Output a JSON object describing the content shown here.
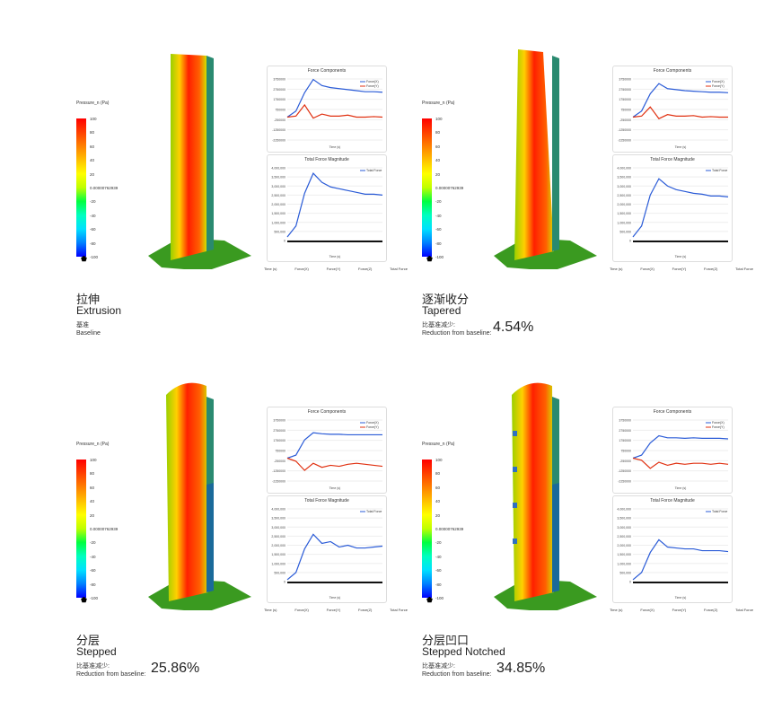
{
  "legend": {
    "title": "Pressure_n (Pa)",
    "ticks": [
      "100",
      "80",
      "60",
      "40",
      "20",
      "0.00000762939",
      "-20",
      "-40",
      "-60",
      "-80",
      "-100"
    ],
    "colors": [
      "#ff0000",
      "#ff4000",
      "#ff8000",
      "#ffc000",
      "#ffff00",
      "#c0ff00",
      "#00ff40",
      "#00ffc0",
      "#00e0ff",
      "#0080ff",
      "#0000ff"
    ]
  },
  "footer": [
    "Time (s)",
    "Force(X)",
    "Force(Y)",
    "Force(Z)",
    "Total Force"
  ],
  "chart_titles": {
    "components": "Force Components",
    "total": "Total Force Magnitude",
    "xlabel": "Time (s)"
  },
  "panels": [
    {
      "cn": "拉伸",
      "en": "Extrusion",
      "sub_cn": "基准",
      "sub_en": "Baseline",
      "pct": "",
      "shape": "extrusion"
    },
    {
      "cn": "逐渐收分",
      "en": "Tapered",
      "sub_cn": "比基准减少:",
      "sub_en": "Reduction from baseline:",
      "pct": "4.54%",
      "shape": "tapered"
    },
    {
      "cn": "分层",
      "en": "Stepped",
      "sub_cn": "比基准减少:",
      "sub_en": "Reduction from baseline:",
      "pct": "25.86%",
      "shape": "stepped"
    },
    {
      "cn": "分层凹口",
      "en": "Stepped Notched",
      "sub_cn": "比基准减少:",
      "sub_en": "Reduction from baseline:",
      "pct": "34.85%",
      "shape": "notched"
    }
  ],
  "chart_data": [
    {
      "type": "line",
      "title": "Force Components",
      "xlabel": "Time (s)",
      "yticks": [
        "3750000",
        "2750000",
        "1750000",
        "750000",
        "-250000",
        "-1250000",
        "-2250000"
      ],
      "ylim": [
        -2250000,
        3750000
      ],
      "series": [
        {
          "name": "Force(X)",
          "color": "#2a5bd7",
          "values": [
            0,
            600000,
            2400000,
            3700000,
            3100000,
            2900000,
            2800000,
            2700000,
            2600000,
            2500000,
            2500000,
            2450000
          ]
        },
        {
          "name": "Force(Y)",
          "color": "#e03010",
          "values": [
            0,
            100000,
            1200000,
            -100000,
            300000,
            100000,
            100000,
            200000,
            0,
            0,
            50000,
            0
          ]
        }
      ]
    },
    {
      "type": "line",
      "title": "Total Force Magnitude",
      "yticks": [
        "4,000,000",
        "3,500,000",
        "3,000,000",
        "2,500,000",
        "2,000,000",
        "1,500,000",
        "1,000,000",
        "500,000",
        "0"
      ],
      "ylim": [
        0,
        4000000
      ],
      "series": [
        {
          "name": "Total Force",
          "color": "#2a5bd7",
          "values": [
            200000,
            800000,
            2600000,
            3700000,
            3200000,
            2950000,
            2850000,
            2750000,
            2650000,
            2550000,
            2550000,
            2500000
          ]
        }
      ]
    },
    {
      "type": "line",
      "title": "Force Components",
      "yticks": [
        "3750000",
        "2750000",
        "1750000",
        "750000",
        "-250000",
        "-1250000",
        "-2250000"
      ],
      "ylim": [
        -2250000,
        3750000
      ],
      "series": [
        {
          "name": "Force(X)",
          "color": "#2a5bd7",
          "values": [
            0,
            600000,
            2300000,
            3300000,
            2800000,
            2700000,
            2600000,
            2550000,
            2500000,
            2450000,
            2450000,
            2400000
          ]
        },
        {
          "name": "Force(Y)",
          "color": "#e03010",
          "values": [
            0,
            100000,
            1000000,
            -150000,
            250000,
            100000,
            100000,
            150000,
            0,
            50000,
            0,
            0
          ]
        }
      ]
    },
    {
      "type": "line",
      "title": "Total Force Magnitude",
      "yticks": [
        "4,000,000",
        "3,500,000",
        "3,000,000",
        "2,500,000",
        "2,000,000",
        "1,500,000",
        "1,000,000",
        "500,000",
        "0"
      ],
      "ylim": [
        0,
        4000000
      ],
      "series": [
        {
          "name": "Total Force",
          "color": "#2a5bd7",
          "values": [
            200000,
            800000,
            2500000,
            3400000,
            3000000,
            2800000,
            2700000,
            2600000,
            2550000,
            2450000,
            2450000,
            2400000
          ]
        }
      ]
    },
    {
      "type": "line",
      "title": "Force Components",
      "yticks": [
        "3750000",
        "2750000",
        "1750000",
        "750000",
        "-250000",
        "-1250000",
        "-2250000"
      ],
      "ylim": [
        -2250000,
        3750000
      ],
      "series": [
        {
          "name": "Force(X)",
          "color": "#2a5bd7",
          "values": [
            0,
            300000,
            1800000,
            2500000,
            2400000,
            2350000,
            2350000,
            2300000,
            2300000,
            2300000,
            2300000,
            2300000
          ]
        },
        {
          "name": "Force(Y)",
          "color": "#e03010",
          "values": [
            0,
            -300000,
            -1200000,
            -500000,
            -900000,
            -700000,
            -800000,
            -600000,
            -500000,
            -600000,
            -700000,
            -800000
          ]
        }
      ]
    },
    {
      "type": "line",
      "title": "Total Force Magnitude",
      "yticks": [
        "4,000,000",
        "3,500,000",
        "3,000,000",
        "2,500,000",
        "2,000,000",
        "1,500,000",
        "1,000,000",
        "500,000",
        "0"
      ],
      "ylim": [
        0,
        4000000
      ],
      "series": [
        {
          "name": "Total Force",
          "color": "#2a5bd7",
          "values": [
            100000,
            500000,
            1800000,
            2600000,
            2100000,
            2200000,
            1900000,
            2000000,
            1850000,
            1850000,
            1900000,
            1950000
          ]
        }
      ]
    },
    {
      "type": "line",
      "title": "Force Components",
      "yticks": [
        "3750000",
        "2750000",
        "1750000",
        "750000",
        "-250000",
        "-1250000",
        "-2250000"
      ],
      "ylim": [
        -2250000,
        3750000
      ],
      "series": [
        {
          "name": "Force(X)",
          "color": "#2a5bd7",
          "values": [
            0,
            300000,
            1500000,
            2200000,
            2000000,
            2000000,
            1950000,
            2000000,
            1950000,
            1950000,
            1950000,
            1900000
          ]
        },
        {
          "name": "Force(Y)",
          "color": "#e03010",
          "values": [
            0,
            -200000,
            -1000000,
            -400000,
            -700000,
            -500000,
            -600000,
            -500000,
            -500000,
            -600000,
            -500000,
            -600000
          ]
        }
      ]
    },
    {
      "type": "line",
      "title": "Total Force Magnitude",
      "yticks": [
        "4,000,000",
        "3,500,000",
        "3,000,000",
        "2,500,000",
        "2,000,000",
        "1,500,000",
        "1,000,000",
        "500,000",
        "0"
      ],
      "ylim": [
        0,
        4000000
      ],
      "series": [
        {
          "name": "Total Force",
          "color": "#2a5bd7",
          "values": [
            100000,
            500000,
            1600000,
            2300000,
            1900000,
            1850000,
            1800000,
            1800000,
            1700000,
            1700000,
            1700000,
            1650000
          ]
        }
      ]
    }
  ]
}
